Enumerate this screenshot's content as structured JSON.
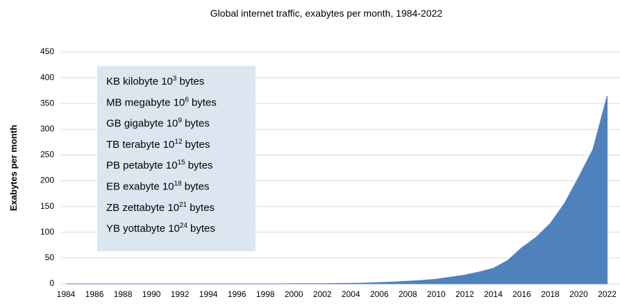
{
  "chart_data": {
    "type": "area",
    "title": "Global internet traffic, exabytes per month, 1984-2022",
    "y_label": "Exabytes per month",
    "x": [
      1984,
      1985,
      1986,
      1987,
      1988,
      1989,
      1990,
      1991,
      1992,
      1993,
      1994,
      1995,
      1996,
      1997,
      1998,
      1999,
      2000,
      2001,
      2002,
      2003,
      2004,
      2005,
      2006,
      2007,
      2008,
      2009,
      2010,
      2011,
      2012,
      2013,
      2014,
      2015,
      2016,
      2017,
      2018,
      2019,
      2020,
      2021,
      2022
    ],
    "series": [
      {
        "color": "#4f81bd",
        "values": [
          0,
          0,
          0,
          0,
          0,
          0,
          0,
          0,
          0,
          0,
          0,
          0,
          0,
          0,
          0,
          0,
          0.1,
          0.2,
          0.4,
          0.7,
          1,
          1.5,
          2.5,
          3.5,
          5,
          6.5,
          9,
          13,
          17,
          23,
          30,
          45,
          70,
          90,
          117,
          156,
          207,
          261,
          365
        ]
      }
    ],
    "xlim": [
      1984,
      2022.9
    ],
    "ylim": [
      0,
      450
    ],
    "xticks": [
      1984,
      1986,
      1988,
      1990,
      1992,
      1994,
      1996,
      1998,
      2000,
      2002,
      2004,
      2006,
      2008,
      2010,
      2012,
      2014,
      2016,
      2018,
      2020,
      2022
    ],
    "yticks": [
      0,
      50,
      100,
      150,
      200,
      250,
      300,
      350,
      400,
      450
    ],
    "grid": true,
    "annotation_box": {
      "color": "#dce6f1",
      "lines": [
        {
          "text": "KB kilobyte 10",
          "sup": "3",
          "suffix": "bytes"
        },
        {
          "text": "MB megabyte 10",
          "sup": "6",
          "suffix": "bytes"
        },
        {
          "text": "GB gigabyte 10",
          "sup": "9",
          "suffix": "bytes"
        },
        {
          "text": "TB terabyte 10",
          "sup": "12",
          "suffix": "bytes"
        },
        {
          "text": "PB petabyte 10",
          "sup": "15",
          "suffix": "bytes"
        },
        {
          "text": "EB exabyte 10",
          "sup": "18",
          "suffix": "bytes"
        },
        {
          "text": "ZB zettabyte 10",
          "sup": "21",
          "suffix": "bytes"
        },
        {
          "text": "YB yottabyte 10",
          "sup": "24",
          "suffix": "bytes"
        }
      ]
    }
  }
}
